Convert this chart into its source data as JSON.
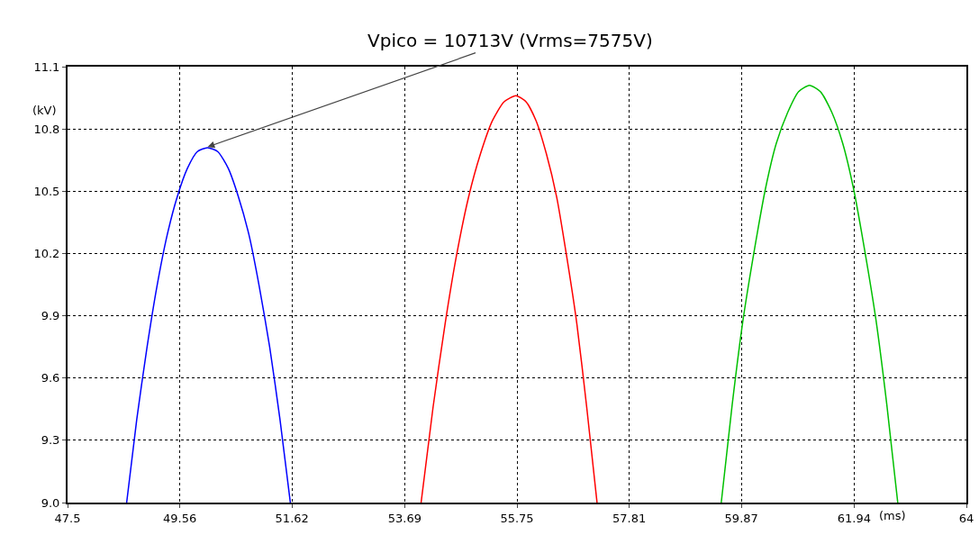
{
  "chart_data": {
    "type": "line",
    "xlabel": "(ms)",
    "ylabel": "(kV)",
    "annotations": [
      {
        "text": "Vpico = 10713V (Vrms=7575V)",
        "x": 50.07,
        "y": 10.713
      }
    ],
    "series": [
      {
        "color": "#0000ff",
        "x": [
          48.585,
          48.77,
          48.96,
          49.14,
          49.33,
          49.51,
          49.7,
          49.88,
          50.07,
          50.26,
          50.45,
          50.64,
          50.83,
          51.02,
          51.21,
          51.4,
          51.59
        ],
        "values": [
          9.0,
          9.4,
          9.75,
          10.04,
          10.29,
          10.47,
          10.61,
          10.69,
          10.71,
          10.69,
          10.61,
          10.47,
          10.29,
          10.04,
          9.75,
          9.4,
          9.0
        ]
      },
      {
        "color": "#ff0000",
        "x": [
          53.99,
          54.21,
          54.43,
          54.64,
          54.86,
          55.08,
          55.3,
          55.51,
          55.73,
          55.92,
          56.1,
          56.29,
          56.48,
          56.66,
          56.85,
          57.03,
          57.22
        ],
        "values": [
          9.0,
          9.46,
          9.86,
          10.19,
          10.47,
          10.68,
          10.84,
          10.93,
          10.96,
          10.93,
          10.84,
          10.68,
          10.47,
          10.19,
          9.86,
          9.46,
          9.0
        ]
      },
      {
        "color": "#00c000",
        "x": [
          59.5,
          59.7,
          59.9,
          60.11,
          60.31,
          60.51,
          60.72,
          60.92,
          61.12,
          61.32,
          61.53,
          61.73,
          61.93,
          62.13,
          62.34,
          62.54,
          62.74
        ],
        "values": [
          9.0,
          9.47,
          9.88,
          10.22,
          10.51,
          10.73,
          10.88,
          10.98,
          11.01,
          10.98,
          10.88,
          10.73,
          10.51,
          10.22,
          9.88,
          9.47,
          9.0
        ]
      }
    ],
    "xlim": [
      47.5,
      64
    ],
    "xticks": [
      47.5,
      49.56,
      51.62,
      53.69,
      55.75,
      57.81,
      59.87,
      61.94,
      64
    ],
    "ylim": [
      9.0,
      11.1
    ],
    "yticks": [
      {
        "value": 9,
        "label": "9.0"
      },
      9.3,
      9.6,
      9.9,
      10.2,
      10.5,
      10.8,
      11.1
    ],
    "grid": true,
    "marker": "none",
    "line_style": "solid"
  }
}
